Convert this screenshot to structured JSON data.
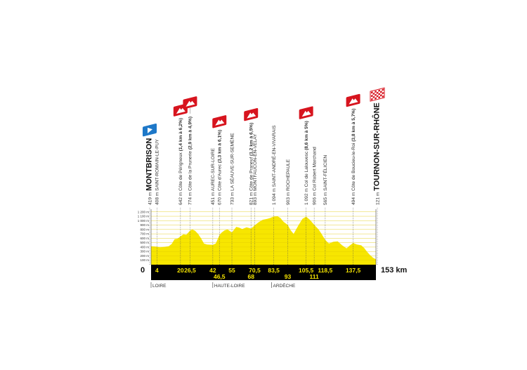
{
  "chart_data": {
    "type": "area",
    "xlabel": "",
    "ylabel": "",
    "xlim": [
      0,
      153
    ],
    "ylim": [
      0,
      1200
    ],
    "x_unit": "km",
    "distance_label": "153 km",
    "origin_label": "0",
    "fill_color": "#f7e600",
    "band_color": "#000000",
    "y_ticks": [
      "100 m",
      "200 m",
      "300 m",
      "400 m",
      "500 m",
      "600 m",
      "700 m",
      "800 m",
      "900 m",
      "1 000 m",
      "1 100 m",
      "1 200 m"
    ],
    "profile": [
      [
        0,
        419
      ],
      [
        2,
        415
      ],
      [
        4,
        408
      ],
      [
        6,
        395
      ],
      [
        8,
        400
      ],
      [
        12,
        420
      ],
      [
        14,
        470
      ],
      [
        16,
        580
      ],
      [
        18,
        590
      ],
      [
        20,
        642
      ],
      [
        22,
        690
      ],
      [
        24,
        680
      ],
      [
        26.5,
        774
      ],
      [
        28,
        800
      ],
      [
        30,
        770
      ],
      [
        32,
        700
      ],
      [
        34,
        600
      ],
      [
        36,
        480
      ],
      [
        38,
        460
      ],
      [
        42,
        451
      ],
      [
        44,
        480
      ],
      [
        46.5,
        670
      ],
      [
        48,
        730
      ],
      [
        50,
        780
      ],
      [
        52,
        800
      ],
      [
        55,
        733
      ],
      [
        58,
        860
      ],
      [
        60,
        840
      ],
      [
        62,
        810
      ],
      [
        65,
        850
      ],
      [
        68,
        821
      ],
      [
        70.5,
        893
      ],
      [
        73,
        960
      ],
      [
        76,
        1020
      ],
      [
        79,
        1040
      ],
      [
        81,
        1060
      ],
      [
        83.5,
        1094
      ],
      [
        86,
        1100
      ],
      [
        88,
        1060
      ],
      [
        90,
        980
      ],
      [
        93,
        903
      ],
      [
        95,
        780
      ],
      [
        97,
        700
      ],
      [
        100,
        880
      ],
      [
        103,
        1040
      ],
      [
        105.5,
        1092
      ],
      [
        108,
        1020
      ],
      [
        111,
        906
      ],
      [
        114,
        800
      ],
      [
        116,
        700
      ],
      [
        118.5,
        565
      ],
      [
        121,
        480
      ],
      [
        124,
        520
      ],
      [
        127,
        530
      ],
      [
        130,
        440
      ],
      [
        133,
        370
      ],
      [
        135,
        430
      ],
      [
        137.5,
        494
      ],
      [
        140,
        460
      ],
      [
        143,
        440
      ],
      [
        145,
        380
      ],
      [
        147,
        290
      ],
      [
        149,
        220
      ],
      [
        151,
        160
      ],
      [
        153,
        121
      ]
    ],
    "waypoints": [
      {
        "km": 0,
        "alt": "419 m",
        "name": "MONTBRISON",
        "type": "start",
        "big": true
      },
      {
        "km": 4,
        "alt": "408 m",
        "name": "SAINT-ROMAIN-LE-PUY"
      },
      {
        "km": 20,
        "alt": "642 m",
        "name": "Côte de Périgneux",
        "detail": "(1,4 km à 6,2%)",
        "type": "climb"
      },
      {
        "km": 26.5,
        "alt": "774 m",
        "name": "Côte de la Prunerie",
        "detail": "(2,9 km à 4,9%)",
        "type": "climb",
        "raised": true
      },
      {
        "km": 42,
        "alt": "451 m",
        "name": "AUREC-SUR-LOIRE"
      },
      {
        "km": 46.5,
        "alt": "670 m",
        "name": "Côte d'Aurec",
        "detail": "(3,3 km à 6,1%)",
        "type": "climb"
      },
      {
        "km": 55,
        "alt": "733 m",
        "name": "LA SÉAUVE-SUR-SEMÈNE"
      },
      {
        "km": 68,
        "alt": "821 m",
        "name": "Côte de Praneuf",
        "detail": "(1,2 km à 6,5%)",
        "type": "climb"
      },
      {
        "km": 70.5,
        "alt": "893 m",
        "name": "MONTFAUCON-EN-VELAY"
      },
      {
        "km": 83.5,
        "alt": "1 094 m",
        "name": "SAINT-ANDRÉ-EN-VIVARAIS"
      },
      {
        "km": 93,
        "alt": "903 m",
        "name": "ROCHEPAULE"
      },
      {
        "km": 105.5,
        "alt": "1 092 m",
        "name": "Col de Lalouvesc",
        "detail": "(8,6 km à 5%)",
        "type": "climb"
      },
      {
        "km": 111,
        "alt": "906 m",
        "name": "Col Robert Marchand"
      },
      {
        "km": 118.5,
        "alt": "565 m",
        "name": "SAINT-FÉLICIEN"
      },
      {
        "km": 137.5,
        "alt": "494 m",
        "name": "Côte de Boucieu-le-Roi",
        "detail": "(3,8 km à 5,7%)",
        "type": "climb"
      },
      {
        "km": 153,
        "alt": "121 m",
        "name": "TOURNON-SUR-RHÔNE",
        "type": "finish",
        "big": true
      }
    ],
    "km_labels": [
      {
        "km": 4,
        "text": "4",
        "row": 1
      },
      {
        "km": 20,
        "text": "20",
        "row": 1
      },
      {
        "km": 26.5,
        "text": "26,5",
        "row": 1
      },
      {
        "km": 42,
        "text": "42",
        "row": 1
      },
      {
        "km": 46.5,
        "text": "46,5",
        "row": 2
      },
      {
        "km": 55,
        "text": "55",
        "row": 1
      },
      {
        "km": 68,
        "text": "68",
        "row": 2
      },
      {
        "km": 70.5,
        "text": "70,5",
        "row": 1
      },
      {
        "km": 83.5,
        "text": "83,5",
        "row": 1
      },
      {
        "km": 93,
        "text": "93",
        "row": 2
      },
      {
        "km": 105.5,
        "text": "105,5",
        "row": 1
      },
      {
        "km": 111,
        "text": "111",
        "row": 2
      },
      {
        "km": 118.5,
        "text": "118,5",
        "row": 1
      },
      {
        "km": 137.5,
        "text": "137,5",
        "row": 1
      }
    ],
    "departments": [
      {
        "km": 0,
        "name": "LOIRE"
      },
      {
        "km": 42,
        "name": "HAUTE-LOIRE"
      },
      {
        "km": 82,
        "name": "ARDÈCHE"
      }
    ],
    "icon_colors": {
      "start": "#1e78c8",
      "climb": "#d7141e"
    }
  }
}
